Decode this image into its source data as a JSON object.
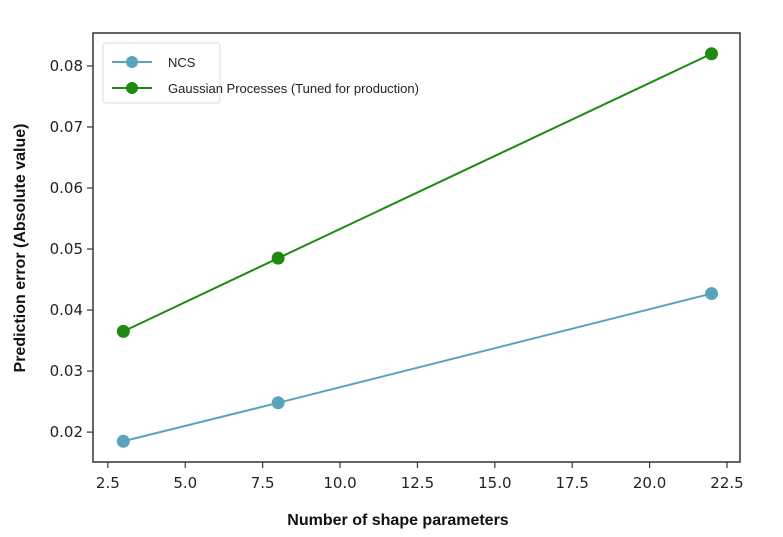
{
  "chart_data": {
    "type": "line",
    "title": "",
    "xlabel": "Number of shape parameters",
    "ylabel": "Prediction error (Absolute value)",
    "xlim": [
      2.02,
      22.92
    ],
    "ylim": [
      0.0151,
      0.0854
    ],
    "xticks": [
      "2.5",
      "5.0",
      "7.5",
      "10.0",
      "12.5",
      "15.0",
      "17.5",
      "20.0",
      "22.5"
    ],
    "xtick_values": [
      2.5,
      5,
      7.5,
      10,
      12.5,
      15,
      17.5,
      20,
      22.5
    ],
    "yticks": [
      "0.02",
      "0.03",
      "0.04",
      "0.05",
      "0.06",
      "0.07",
      "0.08"
    ],
    "ytick_values": [
      0.02,
      0.03,
      0.04,
      0.05,
      0.06,
      0.07,
      0.08
    ],
    "grid": false,
    "legend_position": "top-left",
    "series": [
      {
        "name": "NCS",
        "color": "#5aa3bd",
        "x": [
          3,
          8,
          22
        ],
        "y": [
          0.0185,
          0.0248,
          0.0427
        ]
      },
      {
        "name": "Gaussian Processes (Tuned for production)",
        "color": "#1e8a12",
        "x": [
          3,
          8,
          22
        ],
        "y": [
          0.0365,
          0.0485,
          0.082
        ]
      }
    ]
  }
}
